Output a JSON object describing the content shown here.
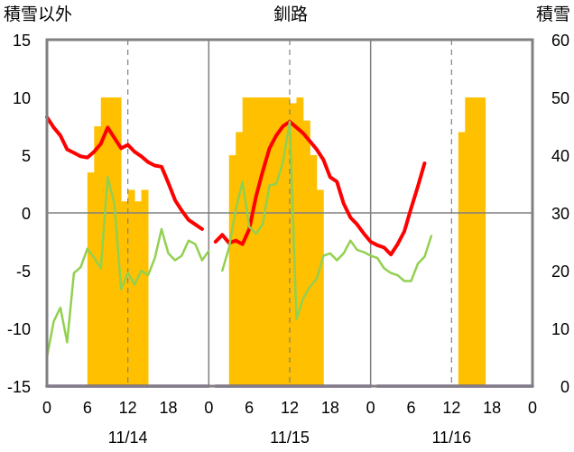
{
  "chart_data": {
    "type": "line",
    "title": "釧路",
    "left_axis_label": "積雪以外",
    "right_axis_label": "積雪",
    "y_left": {
      "min": -15,
      "max": 15,
      "ticks": [
        "15",
        "10",
        "5",
        "0",
        "-5",
        "-10",
        "-15"
      ]
    },
    "y_right": {
      "min": 0,
      "max": 60,
      "ticks": [
        "60",
        "50",
        "40",
        "30",
        "20",
        "10",
        "0"
      ]
    },
    "x": {
      "min": 0,
      "max": 72,
      "hour_tick_labels": [
        "0",
        "6",
        "12",
        "18",
        "0",
        "6",
        "12",
        "18",
        "0",
        "6",
        "12",
        "18",
        "0"
      ],
      "day_labels": [
        "11/14",
        "11/15",
        "11/16"
      ]
    },
    "grid": {
      "solid_day_lines": true,
      "dashed_noon_lines": true
    },
    "colors": {
      "snow_depth": "#FFC000",
      "temperature": "#FF0000",
      "green_series": "#92D050",
      "precip": "#7030A0",
      "frame": "#808080"
    },
    "series": [
      {
        "key": "snow_depth",
        "axis": "right",
        "kind": "bar",
        "points": [
          [
            7,
            37
          ],
          [
            8,
            45
          ],
          [
            9,
            50
          ],
          [
            10,
            50
          ],
          [
            11,
            50
          ],
          [
            12,
            32
          ],
          [
            13,
            34
          ],
          [
            14,
            32
          ],
          [
            15,
            34
          ],
          [
            28,
            40
          ],
          [
            29,
            44
          ],
          [
            30,
            50
          ],
          [
            31,
            50
          ],
          [
            32,
            50
          ],
          [
            33,
            50
          ],
          [
            34,
            50
          ],
          [
            35,
            50
          ],
          [
            36,
            50
          ],
          [
            37,
            49
          ],
          [
            38,
            50
          ],
          [
            39,
            46
          ],
          [
            40,
            40
          ],
          [
            41,
            34
          ],
          [
            62,
            44
          ],
          [
            63,
            50
          ],
          [
            64,
            50
          ],
          [
            65,
            50
          ]
        ]
      },
      {
        "key": "temperature",
        "axis": "left",
        "kind": "line",
        "segments": [
          [
            [
              0,
              8.3
            ],
            [
              1,
              7.4
            ],
            [
              2,
              6.7
            ],
            [
              3,
              5.5
            ],
            [
              4,
              5.2
            ],
            [
              5,
              4.9
            ],
            [
              6,
              4.8
            ],
            [
              7,
              5.3
            ],
            [
              8,
              6.0
            ],
            [
              9,
              7.4
            ],
            [
              10,
              6.5
            ],
            [
              11,
              5.6
            ],
            [
              12,
              5.9
            ],
            [
              13,
              5.3
            ],
            [
              14,
              4.9
            ],
            [
              15,
              4.4
            ],
            [
              16,
              4.1
            ],
            [
              17,
              4.0
            ],
            [
              18,
              2.6
            ],
            [
              19,
              1.1
            ],
            [
              20,
              0.2
            ],
            [
              21,
              -0.6
            ],
            [
              22,
              -1.0
            ],
            [
              23,
              -1.4
            ]
          ],
          [
            [
              25,
              -2.5
            ],
            [
              26,
              -1.9
            ],
            [
              27,
              -2.6
            ],
            [
              28,
              -2.4
            ],
            [
              29,
              -2.7
            ],
            [
              30,
              -1.4
            ],
            [
              31,
              1.4
            ],
            [
              32,
              3.6
            ],
            [
              33,
              5.6
            ],
            [
              34,
              6.7
            ],
            [
              35,
              7.5
            ],
            [
              36,
              7.9
            ],
            [
              37,
              7.4
            ],
            [
              38,
              6.9
            ],
            [
              39,
              6.2
            ],
            [
              40,
              5.5
            ],
            [
              41,
              4.6
            ],
            [
              42,
              3.1
            ],
            [
              43,
              2.7
            ],
            [
              44,
              0.8
            ],
            [
              45,
              -0.4
            ],
            [
              46,
              -1.0
            ],
            [
              47,
              -1.8
            ],
            [
              48,
              -2.5
            ],
            [
              49,
              -2.8
            ],
            [
              50,
              -3.0
            ],
            [
              51,
              -3.6
            ],
            [
              52,
              -2.7
            ],
            [
              53,
              -1.6
            ],
            [
              54,
              0.4
            ],
            [
              55,
              2.3
            ],
            [
              56,
              4.3
            ]
          ]
        ]
      },
      {
        "key": "green_series",
        "axis": "left",
        "kind": "line",
        "segments": [
          [
            [
              0,
              -12.5
            ],
            [
              1,
              -9.4
            ],
            [
              2,
              -8.2
            ],
            [
              3,
              -11.2
            ],
            [
              4,
              -5.2
            ],
            [
              5,
              -4.7
            ],
            [
              6,
              -3.1
            ],
            [
              7,
              -3.9
            ],
            [
              8,
              -4.8
            ],
            [
              9,
              3.1
            ],
            [
              10,
              0.8
            ],
            [
              11,
              -6.6
            ],
            [
              12,
              -5.2
            ],
            [
              13,
              -6.2
            ],
            [
              14,
              -5.0
            ],
            [
              15,
              -5.4
            ],
            [
              16,
              -3.9
            ],
            [
              17,
              -1.4
            ],
            [
              18,
              -3.5
            ],
            [
              19,
              -4.1
            ],
            [
              20,
              -3.7
            ],
            [
              21,
              -2.4
            ],
            [
              22,
              -2.7
            ],
            [
              23,
              -4.1
            ],
            [
              24,
              -3.3
            ]
          ],
          [
            [
              26,
              -5.0
            ],
            [
              27,
              -3.0
            ],
            [
              28,
              0.3
            ],
            [
              29,
              2.7
            ],
            [
              30,
              -1.2
            ],
            [
              31,
              -1.8
            ],
            [
              32,
              -1.0
            ],
            [
              33,
              2.4
            ],
            [
              34,
              2.5
            ],
            [
              35,
              4.4
            ],
            [
              36,
              7.9
            ],
            [
              37,
              -9.2
            ],
            [
              38,
              -7.4
            ],
            [
              39,
              -6.4
            ],
            [
              40,
              -5.7
            ],
            [
              41,
              -3.7
            ],
            [
              42,
              -3.5
            ],
            [
              43,
              -4.1
            ],
            [
              44,
              -3.5
            ],
            [
              45,
              -2.4
            ],
            [
              46,
              -3.2
            ],
            [
              47,
              -3.4
            ],
            [
              48,
              -3.7
            ],
            [
              49,
              -3.9
            ],
            [
              50,
              -4.8
            ],
            [
              51,
              -5.2
            ],
            [
              52,
              -5.4
            ],
            [
              53,
              -5.9
            ],
            [
              54,
              -5.9
            ],
            [
              55,
              -4.4
            ],
            [
              56,
              -3.8
            ],
            [
              57,
              -2.0
            ]
          ]
        ]
      },
      {
        "key": "precip",
        "axis": "left",
        "kind": "line",
        "segments": [
          [
            [
              0,
              -15
            ],
            [
              24,
              -15
            ]
          ],
          [
            [
              25,
              -15
            ],
            [
              48,
              -15
            ]
          ],
          [
            [
              49,
              -15
            ],
            [
              72,
              -15
            ]
          ]
        ]
      }
    ]
  }
}
